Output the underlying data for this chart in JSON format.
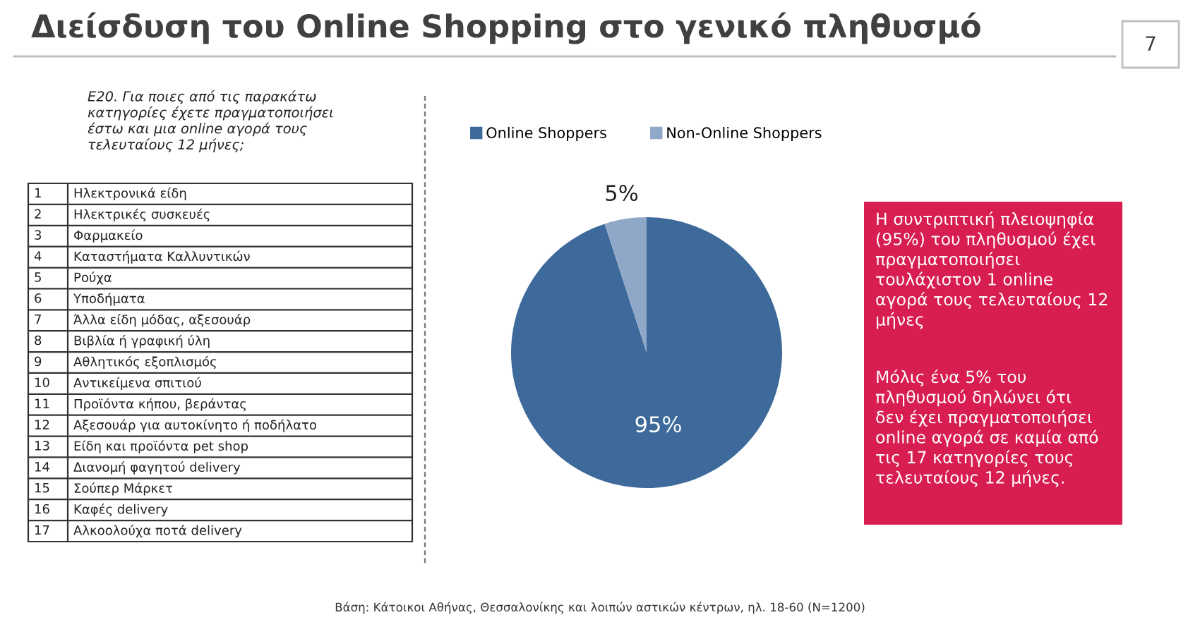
{
  "chart_data": {
    "type": "pie",
    "title": "Διείσδυση του Online Shopping στο γενικό πληθυσμό",
    "categories": [
      "Online Shoppers",
      "Non-Online Shoppers"
    ],
    "values": [
      95,
      5
    ],
    "colors": [
      "#3d6a9a",
      "#8fa8c8"
    ],
    "value_labels": [
      "95%",
      "5%"
    ],
    "legend": "top",
    "annotations": [
      "Ε20. Για ποιες από τις παρακάτω\nκατηγορίες έχετε πραγματοποιήσει\nέστω και μια online αγορά τους\nτελευταίους 12 μήνες;",
      "1 Ηλεκτρονικά είδη",
      "2 Ηλεκτρικές συσκευές",
      "3 Φαρμακείο",
      "4 Καταστήματα Καλλυντικών",
      "5 Ρούχα",
      "6 Υποδήματα",
      "7 Άλλα είδη μόδας, αξεσουάρ",
      "8 Βιβλία ή γραφική ύλη",
      "9 Αθλητικός εξοπλισμός",
      "10 Αντικείμενα σπιτιού",
      "11 Προϊόντα κήπου, βεράντας",
      "12 Αξεσουάρ για αυτοκίνητο ή ποδήλατο",
      "13 Είδη και προϊόντα pet shop",
      "14 Διανομή φαγητού delivery",
      "15 Σούπερ Μάρκετ",
      "16 Καφές delivery",
      "17 Αλκοολούχα ποτά delivery",
      "Η συντριπτική πλειοψηφία\n(95%) του πληθυσμού έχει\nπραγματοποιήσει\nτουλάχιστον 1 online\nαγορά τους τελευταίους 12\nμήνες",
      "Μόλις ένα 5% του\nπληθυσμού δηλώνει ότι\nδεν έχει πραγματοποιήσει\nonline αγορά σε καμία από\nτις 17 κατηγορίες τους\nτελευταίους 12 μήνες.",
      "Βάση: Κάτοικοι Αθήνας, Θεσσαλονίκης και λοιπών αστικών κέντρων, ηλ. 18-60 (N=1200)",
      "7"
    ]
  }
}
